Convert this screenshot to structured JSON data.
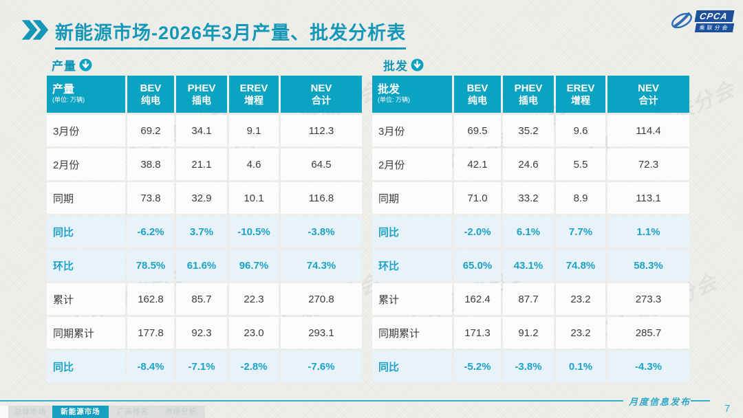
{
  "header": {
    "title": "新能源市场-2026年3月产量、批发分析表",
    "logo": {
      "text": "CPCA",
      "subtext": "乘联分会"
    }
  },
  "colors": {
    "accent_teal": "#0ba3c2",
    "title_teal": "#1598b7",
    "highlight_row_bg": "#e7f3f8",
    "highlight_text": "#1da2c8",
    "logo_blue": "#1c4f9c"
  },
  "watermark": {
    "text": "CPCA 乘联分会"
  },
  "tables": [
    {
      "section_label": "产量",
      "unit": "(单位: 万辆)",
      "columns": [
        {
          "code": "BEV",
          "name": "纯电"
        },
        {
          "code": "PHEV",
          "name": "插电"
        },
        {
          "code": "EREV",
          "name": "增程"
        },
        {
          "code": "NEV",
          "name": "合计"
        }
      ],
      "rows": [
        {
          "label": "3月份",
          "values": [
            "69.2",
            "34.1",
            "9.1",
            "112.3"
          ],
          "highlight": false
        },
        {
          "label": "2月份",
          "values": [
            "38.8",
            "21.1",
            "4.6",
            "64.5"
          ],
          "highlight": false
        },
        {
          "label": "同期",
          "values": [
            "73.8",
            "32.9",
            "10.1",
            "116.8"
          ],
          "highlight": false
        },
        {
          "label": "同比",
          "values": [
            "-6.2%",
            "3.7%",
            "-10.5%",
            "-3.8%"
          ],
          "highlight": true
        },
        {
          "label": "环比",
          "values": [
            "78.5%",
            "61.6%",
            "96.7%",
            "74.3%"
          ],
          "highlight": true
        },
        {
          "label": "累计",
          "values": [
            "162.8",
            "85.7",
            "22.3",
            "270.8"
          ],
          "highlight": false
        },
        {
          "label": "同期累计",
          "values": [
            "177.8",
            "92.3",
            "23.0",
            "293.1"
          ],
          "highlight": false
        },
        {
          "label": "同比",
          "values": [
            "-8.4%",
            "-7.1%",
            "-2.8%",
            "-7.6%"
          ],
          "highlight": true
        }
      ]
    },
    {
      "section_label": "批发",
      "unit": "(单位: 万辆)",
      "columns": [
        {
          "code": "BEV",
          "name": "纯电"
        },
        {
          "code": "PHEV",
          "name": "插电"
        },
        {
          "code": "EREV",
          "name": "增程"
        },
        {
          "code": "NEV",
          "name": "合计"
        }
      ],
      "rows": [
        {
          "label": "3月份",
          "values": [
            "69.5",
            "35.2",
            "9.6",
            "114.4"
          ],
          "highlight": false
        },
        {
          "label": "2月份",
          "values": [
            "42.1",
            "24.6",
            "5.5",
            "72.3"
          ],
          "highlight": false
        },
        {
          "label": "同期",
          "values": [
            "71.0",
            "33.2",
            "8.9",
            "113.1"
          ],
          "highlight": false
        },
        {
          "label": "同比",
          "values": [
            "-2.0%",
            "6.1%",
            "7.7%",
            "1.1%"
          ],
          "highlight": true
        },
        {
          "label": "环比",
          "values": [
            "65.0%",
            "43.1%",
            "74.8%",
            "58.3%"
          ],
          "highlight": true
        },
        {
          "label": "累计",
          "values": [
            "162.4",
            "87.7",
            "23.2",
            "273.3"
          ],
          "highlight": false
        },
        {
          "label": "同期累计",
          "values": [
            "171.3",
            "91.2",
            "23.2",
            "285.7"
          ],
          "highlight": false
        },
        {
          "label": "同比",
          "values": [
            "-5.2%",
            "-3.8%",
            "0.1%",
            "-4.3%"
          ],
          "highlight": true
        }
      ]
    }
  ],
  "footer": {
    "tabs": [
      "总体市场",
      "新能源市场",
      "厂商排名",
      "市场分析"
    ],
    "active_tab": "新能源市场",
    "publisher": "月度信息发布",
    "page_number": "7"
  }
}
